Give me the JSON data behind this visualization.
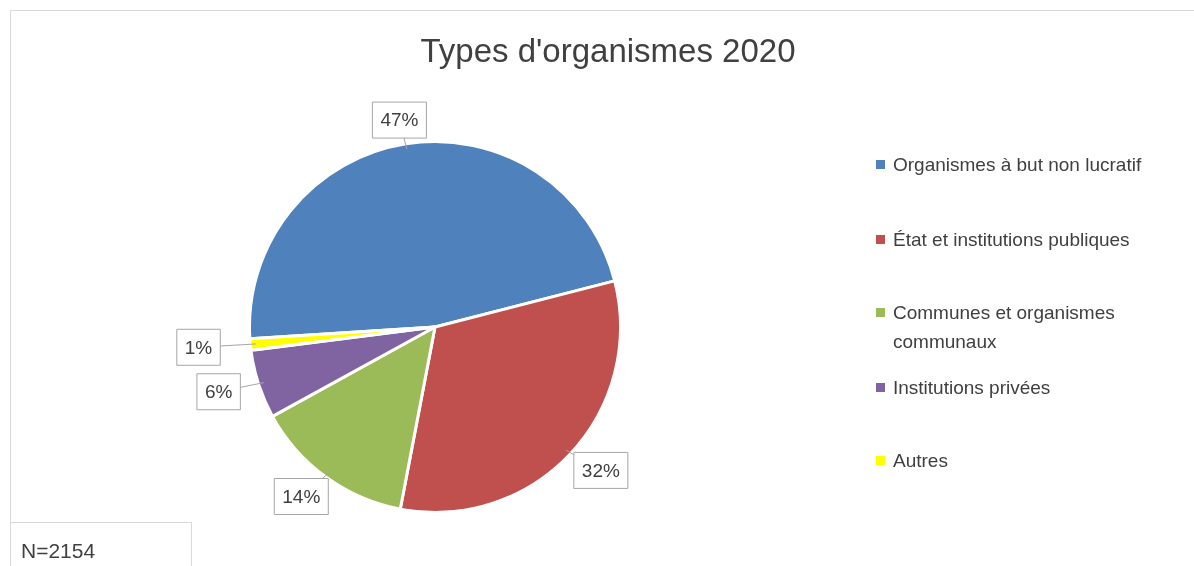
{
  "chart_data": {
    "type": "pie",
    "title": "Types d'organismes 2020",
    "categories": [
      "Organismes à but non lucratif",
      "État et institutions publiques",
      "Communes et organismes communaux",
      "Institutions privées",
      "Autres"
    ],
    "values": [
      47,
      32,
      14,
      6,
      1
    ],
    "colors": [
      "#4f81bd",
      "#c0504d",
      "#9bbb59",
      "#8064a2",
      "#ffff00"
    ],
    "value_labels": [
      "47%",
      "32%",
      "14%",
      "6%",
      "1%"
    ],
    "legend": "right",
    "annotations": [
      "N=2154"
    ]
  }
}
